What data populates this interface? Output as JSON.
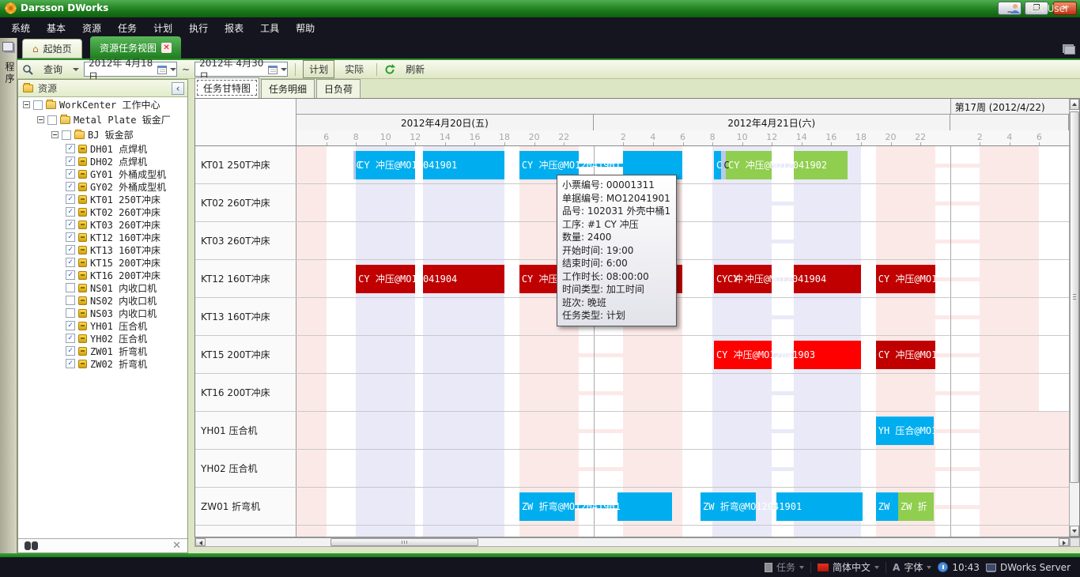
{
  "window": {
    "title": "Darsson DWorks",
    "minimize": "_",
    "maximize": "❐",
    "close": "✕"
  },
  "menu_bar": {
    "items": [
      "系统",
      "基本",
      "资源",
      "任务",
      "计划",
      "执行",
      "报表",
      "工具",
      "帮助"
    ],
    "user_label": "Test User"
  },
  "side_strip": {
    "label": "程序"
  },
  "doc_tabs": {
    "home": "起始页",
    "active": "资源任务视图"
  },
  "toolbar": {
    "query": "查询",
    "date_from": "2012年 4月18日",
    "range_sep": "~",
    "date_to": "2012年 4月30日",
    "plan": "计划",
    "actual": "实际",
    "refresh": "刷新"
  },
  "resource_panel": {
    "title": "资源",
    "tree": [
      {
        "label": "WorkCenter 工作中心",
        "level": 0,
        "expander": true,
        "checkbox": "unchecked",
        "icon": "workcenter-icon"
      },
      {
        "label": "Metal Plate 钣金厂",
        "level": 1,
        "expander": true,
        "checkbox": "unchecked",
        "icon": "workcenter-icon"
      },
      {
        "label": "BJ 钣金部",
        "level": 2,
        "expander": true,
        "checkbox": "unchecked",
        "icon": "folder-icon"
      },
      {
        "label": "DH01 点焊机",
        "level": 3,
        "checkbox": "checked",
        "icon": "machine-icon"
      },
      {
        "label": "DH02 点焊机",
        "level": 3,
        "checkbox": "checked",
        "icon": "machine-icon"
      },
      {
        "label": "GY01 外桶成型机",
        "level": 3,
        "checkbox": "checked",
        "icon": "machine-icon"
      },
      {
        "label": "GY02 外桶成型机",
        "level": 3,
        "checkbox": "checked",
        "icon": "machine-icon"
      },
      {
        "label": "KT01 250T冲床",
        "level": 3,
        "checkbox": "checked",
        "icon": "machine-icon"
      },
      {
        "label": "KT02 260T冲床",
        "level": 3,
        "checkbox": "checked",
        "icon": "machine-icon"
      },
      {
        "label": "KT03 260T冲床",
        "level": 3,
        "checkbox": "checked",
        "icon": "machine-icon"
      },
      {
        "label": "KT12 160T冲床",
        "level": 3,
        "checkbox": "checked",
        "icon": "machine-icon"
      },
      {
        "label": "KT13 160T冲床",
        "level": 3,
        "checkbox": "checked",
        "icon": "machine-icon"
      },
      {
        "label": "KT15 200T冲床",
        "level": 3,
        "checkbox": "checked",
        "icon": "machine-icon"
      },
      {
        "label": "KT16 200T冲床",
        "level": 3,
        "checkbox": "checked",
        "icon": "machine-icon"
      },
      {
        "label": "NS01 内收口机",
        "level": 3,
        "checkbox": "unchecked",
        "icon": "machine-icon"
      },
      {
        "label": "NS02 内收口机",
        "level": 3,
        "checkbox": "unchecked",
        "icon": "machine-icon"
      },
      {
        "label": "NS03 内收口机",
        "level": 3,
        "checkbox": "unchecked",
        "icon": "machine-icon"
      },
      {
        "label": "YH01 压合机",
        "level": 3,
        "checkbox": "checked",
        "icon": "machine-icon"
      },
      {
        "label": "YH02 压合机",
        "level": 3,
        "checkbox": "checked",
        "icon": "machine-icon"
      },
      {
        "label": "ZW01 折弯机",
        "level": 3,
        "checkbox": "checked",
        "icon": "machine-icon"
      },
      {
        "label": "ZW02 折弯机",
        "level": 3,
        "checkbox": "checked",
        "icon": "machine-icon"
      }
    ]
  },
  "gantt": {
    "tabs": [
      "任务甘特图",
      "任务明细",
      "日负荷"
    ],
    "time_range": {
      "start": 4,
      "end": 56
    },
    "week_box": {
      "start": 48,
      "end": 56,
      "label": "第17周 (2012/4/22)"
    },
    "days": [
      {
        "label": "2012年4月20日(五)",
        "start": 4,
        "end": 24,
        "ticks": [
          [
            6,
            "6"
          ],
          [
            8,
            "8"
          ],
          [
            10,
            "10"
          ],
          [
            12,
            "12"
          ],
          [
            14,
            "14"
          ],
          [
            16,
            "16"
          ],
          [
            18,
            "18"
          ],
          [
            20,
            "20"
          ],
          [
            22,
            "22"
          ]
        ]
      },
      {
        "label": "2012年4月21日(六)",
        "start": 24,
        "end": 48,
        "ticks": [
          [
            26,
            "2"
          ],
          [
            28,
            "4"
          ],
          [
            30,
            "6"
          ],
          [
            32,
            "8"
          ],
          [
            34,
            "10"
          ],
          [
            36,
            "12"
          ],
          [
            38,
            "14"
          ],
          [
            40,
            "16"
          ],
          [
            42,
            "18"
          ],
          [
            44,
            "20"
          ],
          [
            46,
            "22"
          ]
        ]
      },
      {
        "label": "",
        "start": 48,
        "end": 56,
        "ticks": [
          [
            50,
            "2"
          ],
          [
            52,
            "4"
          ],
          [
            54,
            "6"
          ]
        ]
      }
    ],
    "rows": [
      {
        "code": "KT01",
        "label": "KT01 250T冲床",
        "band_set": "A"
      },
      {
        "code": "KT02",
        "label": "KT02 260T冲床",
        "band_set": "A"
      },
      {
        "code": "KT03",
        "label": "KT03 260T冲床",
        "band_set": "A"
      },
      {
        "code": "KT12",
        "label": "KT12 160T冲床",
        "band_set": "A"
      },
      {
        "code": "KT13",
        "label": "KT13 160T冲床",
        "band_set": "A"
      },
      {
        "code": "KT15",
        "label": "KT15 200T冲床",
        "band_set": "A"
      },
      {
        "code": "KT16",
        "label": "KT16 200T冲床",
        "band_set": "A"
      },
      {
        "code": "YH01",
        "label": "YH01 压合机",
        "band_set": "B"
      },
      {
        "code": "YH02",
        "label": "YH02 压合机",
        "band_set": "B"
      },
      {
        "code": "ZW01",
        "label": "ZW01 折弯机",
        "band_set": "B"
      },
      {
        "code": "ZW02",
        "label": "ZW02 折弯机",
        "band_set": "B"
      }
    ],
    "band_sets": {
      "A": [
        [
          4,
          6,
          "pink",
          0
        ],
        [
          8,
          12,
          "lav",
          0
        ],
        [
          12.5,
          18,
          "lav",
          0
        ],
        [
          19,
          23,
          "pink",
          0
        ],
        [
          23,
          26,
          "pink",
          1
        ],
        [
          26,
          30,
          "pink",
          0
        ],
        [
          32,
          36,
          "lav",
          0
        ],
        [
          36,
          37.5,
          "lav",
          1
        ],
        [
          37.5,
          42,
          "lav",
          0
        ],
        [
          43,
          47,
          "pink",
          0
        ],
        [
          47,
          50,
          "pink",
          1
        ],
        [
          50,
          54,
          "pink",
          0
        ]
      ],
      "B": [
        [
          4,
          6,
          "pink",
          0
        ],
        [
          8,
          12,
          "lav",
          0
        ],
        [
          12.5,
          18,
          "lav",
          0
        ],
        [
          19,
          23,
          "pink",
          0
        ],
        [
          23,
          26,
          "pink",
          1
        ],
        [
          26,
          30,
          "pink",
          0
        ],
        [
          32,
          36,
          "lav",
          0
        ],
        [
          36,
          37.5,
          "lav",
          1
        ],
        [
          37.5,
          42,
          "lav",
          0
        ],
        [
          43,
          47,
          "pink",
          0
        ],
        [
          47,
          50,
          "pink",
          1
        ],
        [
          50,
          56,
          "pink",
          0
        ]
      ]
    },
    "bars": [
      {
        "row": "KT01",
        "segments": [
          [
            7.85,
            8.1
          ]
        ],
        "color": "setup",
        "label": "C",
        "clip": false
      },
      {
        "row": "KT01",
        "segments": [
          [
            8,
            12
          ],
          [
            12.5,
            18
          ]
        ],
        "color": "cyan",
        "label": "CY 冲压@MO12041901"
      },
      {
        "row": "KT01",
        "segments": [
          [
            19,
            23
          ],
          [
            26,
            30
          ]
        ],
        "connectors": [
          [
            23,
            26
          ]
        ],
        "color": "cyan",
        "label": "CY 冲压@MO12041901"
      },
      {
        "row": "KT01",
        "segments": [
          [
            32.1,
            32.6
          ]
        ],
        "color": "cyan",
        "label": "C",
        "clip": false
      },
      {
        "row": "KT01",
        "segments": [
          [
            32.6,
            32.9
          ]
        ],
        "color": "setup",
        "label": "C",
        "clip": false,
        "dark_text": true
      },
      {
        "row": "KT01",
        "segments": [
          [
            32.9,
            36
          ],
          [
            37.5,
            41.1
          ]
        ],
        "color": "green",
        "label": "CY 冲压@MO12041902"
      },
      {
        "row": "KT12",
        "segments": [
          [
            8,
            12
          ],
          [
            12.5,
            18
          ]
        ],
        "color": "darkred",
        "label": "CY 冲压@MO12041904"
      },
      {
        "row": "KT12",
        "segments": [
          [
            19,
            23
          ],
          [
            26,
            30
          ]
        ],
        "connectors": [
          [
            23,
            26
          ]
        ],
        "color": "darkred",
        "label": "CY 冲压@MO12041904"
      },
      {
        "row": "KT12",
        "segments": [
          [
            32.1,
            32.85
          ]
        ],
        "color": "darkred",
        "label": "CY 冲",
        "clip": false
      },
      {
        "row": "KT12",
        "segments": [
          [
            32.85,
            36
          ],
          [
            37.5,
            42
          ]
        ],
        "color": "darkred",
        "label": "CY 冲压@MO12041904"
      },
      {
        "row": "KT12",
        "segments": [
          [
            43,
            47
          ]
        ],
        "color": "darkred",
        "label": "CY 冲压@MO1"
      },
      {
        "row": "KT15",
        "segments": [
          [
            32.1,
            36
          ],
          [
            37.5,
            42
          ]
        ],
        "color": "red",
        "label": "CY 冲压@MO12041903"
      },
      {
        "row": "KT15",
        "segments": [
          [
            43,
            47
          ]
        ],
        "color": "darkred",
        "label": "CY 冲压@MO1"
      },
      {
        "row": "YH01",
        "segments": [
          [
            43,
            46.9
          ]
        ],
        "color": "cyan",
        "label": "YH 压合@MO1"
      },
      {
        "row": "ZW01",
        "segments": [
          [
            19,
            22.75
          ],
          [
            25.6,
            29.3
          ]
        ],
        "connectors": [
          [
            22.75,
            25.6
          ]
        ],
        "color": "cyan",
        "label": "ZW 折弯@MO12041901"
      },
      {
        "row": "ZW01",
        "segments": [
          [
            31.2,
            34.9
          ],
          [
            36.3,
            42.1
          ]
        ],
        "color": "cyan",
        "label": "ZW 折弯@MO12041901"
      },
      {
        "row": "ZW01",
        "segments": [
          [
            43,
            44.5
          ]
        ],
        "color": "cyan",
        "label": "ZW",
        "clip": false
      },
      {
        "row": "ZW01",
        "segments": [
          [
            44.5,
            46.9
          ]
        ],
        "color": "green",
        "label": "ZW 折"
      }
    ],
    "colors": {
      "cyan": "#00AEEF",
      "green": "#8FCE4E",
      "red": "#FF0000",
      "darkred": "#C00000",
      "setup": "#B9C9E8",
      "pink": "#FBE9E8",
      "lav": "#E9E9F8"
    }
  },
  "tooltip": {
    "lines": [
      "小票编号: 00001311",
      "单据编号: MO12041901",
      "品号: 102031 外壳中桶1",
      "工序: #1  CY 冲压",
      "数量: 2400",
      "开始时间: 19:00",
      "结束时间: 6:00",
      "工作时长: 08:00:00",
      "时间类型: 加工时间",
      "班次: 晚班",
      "任务类型: 计划"
    ]
  },
  "status_bar": {
    "task": "任务",
    "language": "简体中文",
    "font_label": "字体",
    "time": "10:43",
    "server": "DWorks Server"
  }
}
